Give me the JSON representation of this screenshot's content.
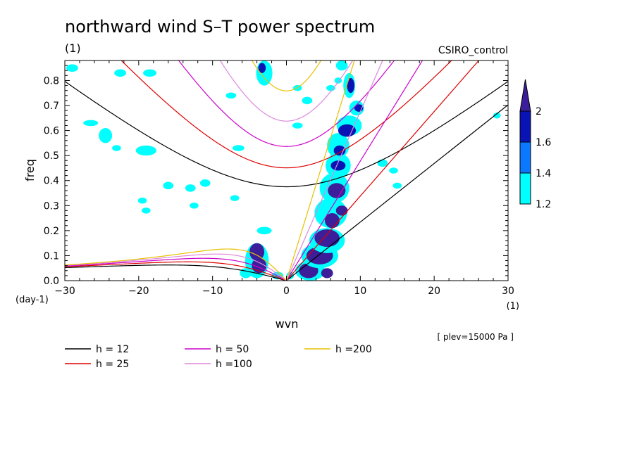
{
  "chart_data": {
    "type": "heatmap",
    "title": "northward wind S–T power spectrum",
    "subtitle_left": "(1)",
    "subtitle_right": "CSIRO_control",
    "xlabel": "wvn",
    "ylabel": "freq",
    "x_unit": "(1)",
    "y_unit": "(day-1)",
    "level_note": "[ plev=15000 Pa ]",
    "xlim": [
      -30,
      30
    ],
    "ylim": [
      0,
      0.88
    ],
    "x_ticks": [
      -30,
      -20,
      -10,
      0,
      10,
      20,
      30
    ],
    "x_tick_labels": [
      "−30",
      "−20",
      "−10",
      "0",
      "10",
      "20",
      "30"
    ],
    "y_ticks": [
      0.0,
      0.1,
      0.2,
      0.3,
      0.4,
      0.5,
      0.6,
      0.7,
      0.8
    ],
    "y_tick_labels": [
      "0.0",
      "0.1",
      "0.2",
      "0.3",
      "0.4",
      "0.5",
      "0.6",
      "0.7",
      "0.8"
    ],
    "colorbar": {
      "levels": [
        1.2,
        1.4,
        1.6,
        2
      ],
      "labels": [
        "1.2",
        "1.4",
        "1.6",
        "2"
      ],
      "colors": [
        "#00ffff",
        "#0a78ff",
        "#0a14b4",
        "#3c1e9a"
      ]
    },
    "dispersion_curves": [
      {
        "name": "h = 12",
        "h": 12,
        "color": "#000000"
      },
      {
        "name": "h = 25",
        "h": 25,
        "color": "#dd0000"
      },
      {
        "name": "h = 50",
        "h": 50,
        "color": "#cc00cc"
      },
      {
        "name": "h =100",
        "h": 100,
        "color": "#dd88dd"
      },
      {
        "name": "h =200",
        "h": 200,
        "color": "#e8c000"
      }
    ],
    "blobs": [
      {
        "x": -29,
        "y": 0.85,
        "rx": 0.8,
        "ry": 0.015,
        "level": 0
      },
      {
        "x": -24.5,
        "y": 0.58,
        "rx": 0.9,
        "ry": 0.03,
        "level": 0
      },
      {
        "x": -26.5,
        "y": 0.63,
        "rx": 1.0,
        "ry": 0.012,
        "level": 0
      },
      {
        "x": -22.5,
        "y": 0.83,
        "rx": 0.8,
        "ry": 0.015,
        "level": 0
      },
      {
        "x": -18.5,
        "y": 0.83,
        "rx": 0.9,
        "ry": 0.015,
        "level": 0
      },
      {
        "x": -19,
        "y": 0.52,
        "rx": 1.4,
        "ry": 0.02,
        "level": 0
      },
      {
        "x": -23,
        "y": 0.53,
        "rx": 0.6,
        "ry": 0.012,
        "level": 0
      },
      {
        "x": -16,
        "y": 0.38,
        "rx": 0.7,
        "ry": 0.015,
        "level": 0
      },
      {
        "x": -19.5,
        "y": 0.32,
        "rx": 0.6,
        "ry": 0.012,
        "level": 0
      },
      {
        "x": -19,
        "y": 0.28,
        "rx": 0.6,
        "ry": 0.012,
        "level": 0
      },
      {
        "x": -13,
        "y": 0.37,
        "rx": 0.7,
        "ry": 0.015,
        "level": 0
      },
      {
        "x": -11,
        "y": 0.39,
        "rx": 0.7,
        "ry": 0.015,
        "level": 0
      },
      {
        "x": -12.5,
        "y": 0.3,
        "rx": 0.6,
        "ry": 0.012,
        "level": 0
      },
      {
        "x": -7.5,
        "y": 0.74,
        "rx": 0.7,
        "ry": 0.012,
        "level": 0
      },
      {
        "x": -6.5,
        "y": 0.53,
        "rx": 0.8,
        "ry": 0.012,
        "level": 0
      },
      {
        "x": -7,
        "y": 0.33,
        "rx": 0.6,
        "ry": 0.012,
        "level": 0
      },
      {
        "x": -3,
        "y": 0.83,
        "rx": 1.1,
        "ry": 0.05,
        "level": 0
      },
      {
        "x": -3.3,
        "y": 0.85,
        "rx": 0.5,
        "ry": 0.02,
        "level": 2
      },
      {
        "x": 1.5,
        "y": 0.62,
        "rx": 0.7,
        "ry": 0.012,
        "level": 0
      },
      {
        "x": 2.8,
        "y": 0.72,
        "rx": 0.7,
        "ry": 0.015,
        "level": 0
      },
      {
        "x": 1.5,
        "y": 0.77,
        "rx": 0.6,
        "ry": 0.012,
        "level": 0
      },
      {
        "x": 7.5,
        "y": 0.86,
        "rx": 0.8,
        "ry": 0.02,
        "level": 0
      },
      {
        "x": 6,
        "y": 0.77,
        "rx": 0.6,
        "ry": 0.012,
        "level": 0
      },
      {
        "x": 13,
        "y": 0.47,
        "rx": 0.7,
        "ry": 0.015,
        "level": 0
      },
      {
        "x": 14.5,
        "y": 0.44,
        "rx": 0.6,
        "ry": 0.012,
        "level": 0
      },
      {
        "x": 15,
        "y": 0.38,
        "rx": 0.6,
        "ry": 0.012,
        "level": 0
      },
      {
        "x": 28.5,
        "y": 0.66,
        "rx": 0.5,
        "ry": 0.012,
        "level": 0
      },
      {
        "x": -3,
        "y": 0.2,
        "rx": 1.0,
        "ry": 0.015,
        "level": 0
      },
      {
        "x": -4,
        "y": 0.08,
        "rx": 1.6,
        "ry": 0.07,
        "level": 0
      },
      {
        "x": -4,
        "y": 0.115,
        "rx": 1.0,
        "ry": 0.035,
        "level": 3
      },
      {
        "x": -3.7,
        "y": 0.06,
        "rx": 1.0,
        "ry": 0.03,
        "level": 3
      },
      {
        "x": -5.5,
        "y": 0.03,
        "rx": 0.8,
        "ry": 0.02,
        "level": 0
      },
      {
        "x": -1.2,
        "y": 0.02,
        "rx": 0.8,
        "ry": 0.015,
        "level": 0
      },
      {
        "x": 0.5,
        "y": 0.02,
        "rx": 0.5,
        "ry": 0.015,
        "level": 0
      },
      {
        "x": 3.2,
        "y": 0.04,
        "rx": 2.0,
        "ry": 0.04,
        "level": 0
      },
      {
        "x": 3,
        "y": 0.04,
        "rx": 1.3,
        "ry": 0.03,
        "level": 3
      },
      {
        "x": 4.5,
        "y": 0.1,
        "rx": 2.5,
        "ry": 0.05,
        "level": 0
      },
      {
        "x": 4.5,
        "y": 0.1,
        "rx": 1.8,
        "ry": 0.035,
        "level": 3
      },
      {
        "x": 5.5,
        "y": 0.16,
        "rx": 2.4,
        "ry": 0.05,
        "level": 0
      },
      {
        "x": 5.5,
        "y": 0.17,
        "rx": 1.7,
        "ry": 0.035,
        "level": 3
      },
      {
        "x": 6,
        "y": 0.27,
        "rx": 2.2,
        "ry": 0.06,
        "level": 0
      },
      {
        "x": 6.2,
        "y": 0.24,
        "rx": 1.0,
        "ry": 0.03,
        "level": 3
      },
      {
        "x": 7.5,
        "y": 0.28,
        "rx": 0.8,
        "ry": 0.02,
        "level": 3
      },
      {
        "x": 6.5,
        "y": 0.37,
        "rx": 2.0,
        "ry": 0.06,
        "level": 0
      },
      {
        "x": 6.8,
        "y": 0.36,
        "rx": 1.2,
        "ry": 0.03,
        "level": 3
      },
      {
        "x": 7,
        "y": 0.46,
        "rx": 1.7,
        "ry": 0.05,
        "level": 0
      },
      {
        "x": 7,
        "y": 0.46,
        "rx": 1.0,
        "ry": 0.02,
        "level": 2
      },
      {
        "x": 7,
        "y": 0.54,
        "rx": 1.5,
        "ry": 0.05,
        "level": 0
      },
      {
        "x": 7.2,
        "y": 0.52,
        "rx": 0.8,
        "ry": 0.02,
        "level": 2
      },
      {
        "x": 8.5,
        "y": 0.62,
        "rx": 1.7,
        "ry": 0.04,
        "level": 0
      },
      {
        "x": 8.2,
        "y": 0.6,
        "rx": 1.2,
        "ry": 0.025,
        "level": 2
      },
      {
        "x": 9.5,
        "y": 0.69,
        "rx": 1.0,
        "ry": 0.03,
        "level": 0
      },
      {
        "x": 9.8,
        "y": 0.69,
        "rx": 0.6,
        "ry": 0.015,
        "level": 2
      },
      {
        "x": 8.5,
        "y": 0.78,
        "rx": 0.8,
        "ry": 0.05,
        "level": 0
      },
      {
        "x": 8.7,
        "y": 0.78,
        "rx": 0.5,
        "ry": 0.03,
        "level": 2
      },
      {
        "x": 5.5,
        "y": 0.03,
        "rx": 0.8,
        "ry": 0.02,
        "level": 3
      },
      {
        "x": 7,
        "y": 0.8,
        "rx": 0.5,
        "ry": 0.012,
        "level": 0
      }
    ]
  }
}
